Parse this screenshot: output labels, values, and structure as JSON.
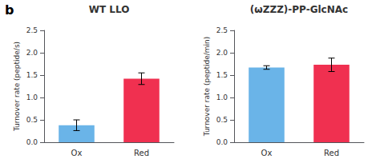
{
  "chart_data": [
    {
      "type": "bar",
      "title": "WT LLO",
      "annotation": "b",
      "ylabel": "Turnover rate (peptide/s)",
      "categories": [
        "Ox",
        "Red"
      ],
      "values": [
        0.38,
        1.42
      ],
      "errors": [
        0.12,
        0.13
      ],
      "colors": [
        "#6ab4e8",
        "#f03050"
      ],
      "ylim": [
        0,
        2.5
      ],
      "yticks": [
        {
          "value": 0.0,
          "label": "0.0"
        },
        0.5,
        {
          "value": 1.0,
          "label": "1.0"
        },
        1.5,
        {
          "value": 2.0,
          "label": "2.0"
        },
        2.5
      ],
      "grid": false
    },
    {
      "type": "bar",
      "title": "(ωZZZ)-PP-GlcNAc",
      "ylabel": "Turnover rate (peptide/min)",
      "categories": [
        "Ox",
        "Red"
      ],
      "values": [
        1.67,
        1.73
      ],
      "errors": [
        0.04,
        0.15
      ],
      "colors": [
        "#6ab4e8",
        "#f03050"
      ],
      "ylim": [
        0,
        2.5
      ],
      "yticks": [
        {
          "value": 0.0,
          "label": "0.0"
        },
        0.5,
        {
          "value": 1.0,
          "label": "1.0"
        },
        1.5,
        {
          "value": 2.0,
          "label": "2.0"
        },
        2.5
      ],
      "grid": false
    }
  ]
}
